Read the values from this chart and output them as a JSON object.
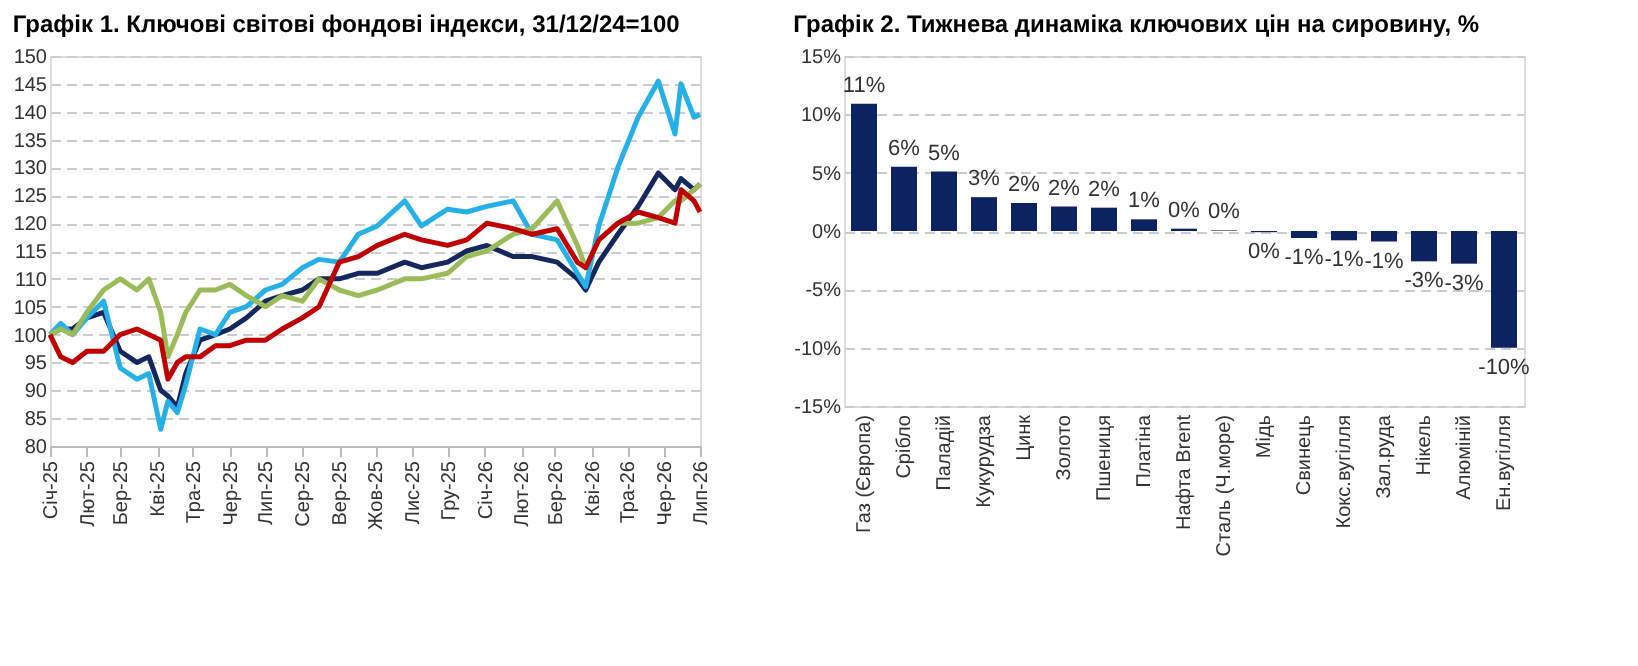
{
  "chart_data": [
    {
      "type": "line",
      "title": "Графік 1. Ключові світові фондові індекси, 31/12/24=100",
      "x": [
        "2025-01-01",
        "2025-01-10",
        "2025-01-20",
        "2025-02-01",
        "2025-02-15",
        "2025-03-01",
        "2025-03-15",
        "2025-03-25",
        "2025-04-04",
        "2025-04-10",
        "2025-04-18",
        "2025-04-25",
        "2025-05-07",
        "2025-05-20",
        "2025-06-01",
        "2025-06-15",
        "2025-07-01",
        "2025-07-15",
        "2025-08-01",
        "2025-08-15",
        "2025-09-01",
        "2025-09-17",
        "2025-10-03",
        "2025-10-26",
        "2025-11-09",
        "2025-12-01",
        "2025-12-17",
        "2026-01-03",
        "2026-01-25",
        "2026-02-10",
        "2026-03-03",
        "2026-03-20",
        "2026-03-27",
        "2026-04-07",
        "2026-04-23",
        "2026-05-10",
        "2026-05-27",
        "2026-06-10",
        "2026-06-15",
        "2026-06-26",
        "2026-07-01"
      ],
      "series": [
        {
          "color": "#14275e",
          "values": [
            100,
            101,
            101,
            103,
            104,
            97,
            95,
            96,
            90,
            89,
            87,
            93,
            99,
            100,
            101,
            103,
            106,
            107,
            108,
            110,
            110,
            111,
            111,
            113,
            112,
            113,
            115,
            116,
            114,
            114,
            113,
            110,
            108,
            113,
            118,
            123,
            129,
            126,
            128,
            126,
            127
          ]
        },
        {
          "color": "#25b0e8",
          "values": [
            100,
            102,
            100,
            103,
            106,
            94,
            92,
            93,
            83,
            88,
            86,
            91,
            101,
            100,
            104,
            105,
            108,
            109,
            112,
            113.5,
            113,
            118,
            119.5,
            124,
            119.5,
            122.5,
            122,
            123,
            124,
            118,
            117,
            111,
            108.6,
            119.5,
            130,
            139,
            145.5,
            136,
            145,
            139,
            139.5
          ]
        },
        {
          "color": "#9bbb59",
          "values": [
            100,
            101,
            100,
            104,
            108,
            110,
            108,
            110,
            104,
            96,
            100,
            104,
            108,
            108,
            109,
            107,
            105,
            107,
            106,
            110,
            108,
            107,
            108,
            110,
            110,
            111,
            114,
            115,
            118,
            119,
            124,
            116,
            112,
            117,
            120,
            120,
            121,
            124,
            124,
            126,
            127
          ]
        },
        {
          "color": "#c00000",
          "values": [
            100,
            96,
            95,
            97,
            97,
            100,
            101,
            100,
            99,
            92,
            95,
            96,
            96,
            98,
            98,
            99,
            99,
            101,
            103,
            105,
            113,
            114,
            116,
            118,
            117,
            116,
            117,
            120,
            119,
            118,
            119,
            113,
            112,
            117,
            120,
            122,
            121,
            120,
            126,
            124,
            122
          ]
        }
      ],
      "xlim": [
        "2025-01-01",
        "2026-07-01"
      ],
      "xticks": [
        {
          "value": "2025-01-01",
          "label": "Січ-25"
        },
        {
          "value": "2025-02-01",
          "label": "Лют-25"
        },
        {
          "value": "2025-03-01",
          "label": "Бер-25"
        },
        {
          "value": "2025-04-01",
          "label": "Кві-25"
        },
        {
          "value": "2025-05-01",
          "label": "Тра-25"
        },
        {
          "value": "2025-06-01",
          "label": "Чер-25"
        },
        {
          "value": "2025-07-01",
          "label": "Лип-25"
        },
        {
          "value": "2025-08-01",
          "label": "Сер-25"
        },
        {
          "value": "2025-09-01",
          "label": "Вер-25"
        },
        {
          "value": "2025-10-01",
          "label": "Жов-25"
        },
        {
          "value": "2025-11-01",
          "label": "Лис-25"
        },
        {
          "value": "2025-12-01",
          "label": "Гру-25"
        },
        {
          "value": "2026-01-01",
          "label": "Січ-26"
        },
        {
          "value": "2026-02-01",
          "label": "Лют-26"
        },
        {
          "value": "2026-03-01",
          "label": "Бер-26"
        },
        {
          "value": "2026-04-01",
          "label": "Кві-26"
        },
        {
          "value": "2026-05-01",
          "label": "Тра-26"
        },
        {
          "value": "2026-06-01",
          "label": "Чер-26"
        },
        {
          "value": "2026-07-01",
          "label": "Лип-26"
        }
      ],
      "ylim": [
        80,
        150
      ],
      "yticks": [
        80,
        85,
        90,
        95,
        100,
        105,
        110,
        115,
        120,
        125,
        130,
        135,
        140,
        145,
        150
      ],
      "grid": "y",
      "line_style": "solid"
    },
    {
      "type": "bar",
      "title": "Графік 2. Тижнева динаміка ключових цін на сировину, %",
      "categories": [
        "Газ (Європа)",
        "Срібло",
        "Паладій",
        "Кукурудза",
        "Цинк",
        "Золото",
        "Пшениця",
        "Платіна",
        "Нафта Brent",
        "Сталь (Ч.море)",
        "Мідь",
        "Свинець",
        "Кокс.вугілля",
        "Зал.руда",
        "Нікель",
        "Алюміній",
        "Ен.вугілля"
      ],
      "values": [
        10.9,
        5.5,
        5.1,
        2.9,
        2.4,
        2.1,
        2.0,
        1.0,
        0.2,
        0.05,
        -0.1,
        -0.6,
        -0.8,
        -0.9,
        -2.6,
        -2.8,
        -10.0
      ],
      "value_labels": [
        "11%",
        "6%",
        "5%",
        "3%",
        "2%",
        "2%",
        "2%",
        "1%",
        "0%",
        "0%",
        "0%",
        "-1%",
        "-1%",
        "-1%",
        "-3%",
        "-3%",
        "-10%"
      ],
      "color": "#0d2260",
      "ylim": [
        -15,
        15
      ],
      "yticks": [
        {
          "value": -15,
          "label": "-15%"
        },
        {
          "value": -10,
          "label": "-10%"
        },
        {
          "value": -5,
          "label": "-5%"
        },
        {
          "value": 0,
          "label": "0%"
        },
        {
          "value": 5,
          "label": "5%"
        },
        {
          "value": 10,
          "label": "10%"
        },
        {
          "value": 15,
          "label": "15%"
        }
      ],
      "grid": "y"
    }
  ]
}
